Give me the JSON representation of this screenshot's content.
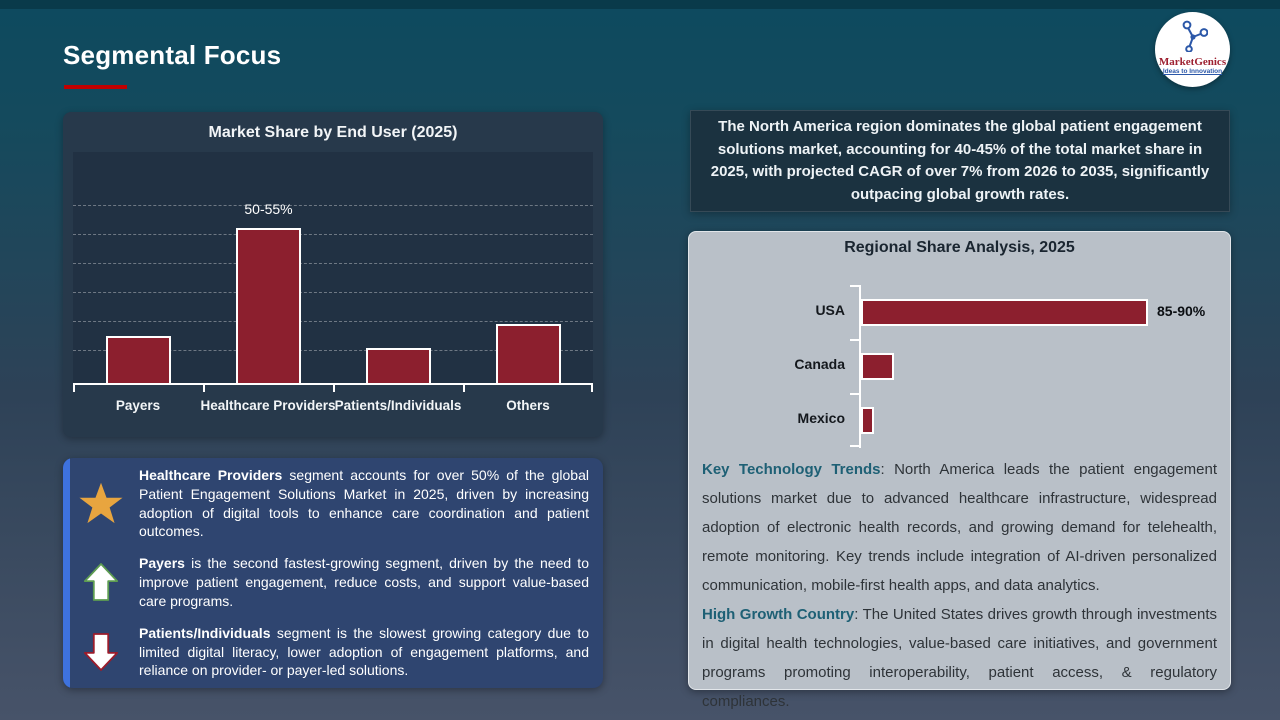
{
  "slide": {
    "title": "Segmental Focus",
    "accent_color": "#c00000",
    "bar_color": "#8c1f2e"
  },
  "logo": {
    "brand": "MarketGenics",
    "tagline": "Ideas to Innovation"
  },
  "summary": {
    "text": "The North America region dominates the global patient engagement solutions  market, accounting for 40-45% of the total market share in 2025, with projected CAGR of over 7% from 2026 to 2035, significantly outpacing global growth rates."
  },
  "chart_data": [
    {
      "type": "bar",
      "title": "Market Share by End User (2025)",
      "categories": [
        "Payers",
        "Healthcare Providers",
        "Patients/Individuals",
        "Others"
      ],
      "values": [
        16,
        52.5,
        12,
        20
      ],
      "data_labels": [
        "",
        "50-55%",
        "",
        ""
      ],
      "ylim": [
        0,
        60
      ],
      "grid": true,
      "legend": false,
      "bar_color": "#8c1f2e"
    },
    {
      "type": "bar-horizontal",
      "title": "Regional Share Analysis, 2025",
      "categories": [
        "USA",
        "Canada",
        "Mexico"
      ],
      "values": [
        87.5,
        10,
        4
      ],
      "data_labels": [
        "85-90%",
        "",
        ""
      ],
      "xlim": [
        0,
        100
      ],
      "grid": false,
      "legend": false,
      "bar_color": "#8c1f2e"
    }
  ],
  "insights": [
    {
      "icon": "star-icon",
      "lead": "Healthcare Providers",
      "text": " segment accounts for over 50% of the global Patient Engagement Solutions Market in 2025, driven by increasing adoption of digital tools to enhance care coordination and patient outcomes."
    },
    {
      "icon": "up-arrow-icon",
      "lead": "Payers",
      "text": " is the second fastest-growing segment, driven by the need to improve patient engagement, reduce costs, and support value-based care programs."
    },
    {
      "icon": "down-arrow-icon",
      "lead": "Patients/Individuals",
      "text": " segment is the slowest growing category due to limited digital literacy, lower adoption of engagement platforms, and reliance on provider- or payer-led solutions."
    }
  ],
  "trends": [
    {
      "lead": "Key Technology Trends",
      "text": ": North America leads the patient engagement solutions market due to advanced healthcare infrastructure, widespread adoption of electronic health records, and growing demand for telehealth, remote monitoring. Key trends include integration of AI-driven personalized communication, mobile-first health apps, and data analytics."
    },
    {
      "lead": "High Growth Country",
      "text": ": The United States drives growth through investments in digital health technologies, value-based care initiatives, and government programs promoting interoperability, patient access, & regulatory compliances."
    }
  ]
}
